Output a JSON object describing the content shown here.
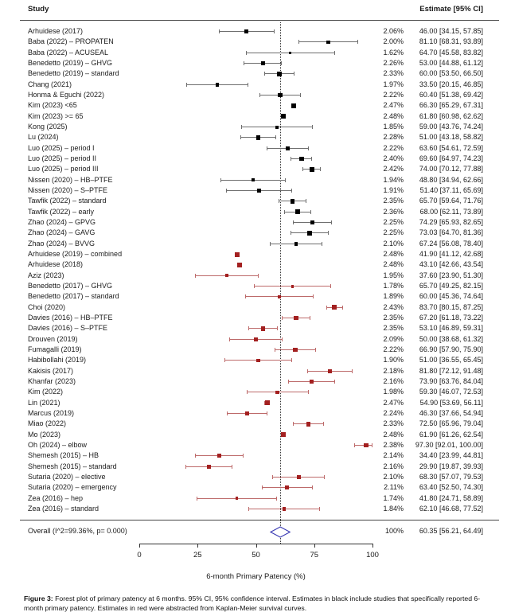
{
  "chart_data": {
    "type": "forest",
    "header": {
      "study_col": "Study",
      "estimate_col": "Estimate [95% CI]"
    },
    "xlabel": "6-month Primary Patency (%)",
    "xlim": [
      0,
      100
    ],
    "xticks": [
      0,
      25,
      50,
      75,
      100
    ],
    "reference_line_x": 60.35,
    "legend_note": "black = studies reporting 6-month primary patency; red = abstracted from Kaplan-Meier curves",
    "colors": {
      "black_marker": "#000000",
      "black_line": "#6e6e6e",
      "red_marker": "#a32020",
      "red_line": "#bd6a6a",
      "diamond_stroke": "#3c3cb4",
      "diamond_fill": "#ffffff",
      "reference_line": "#333333"
    },
    "studies": [
      {
        "name": "Arhuidese (2017)",
        "weight_pct": "2.06%",
        "estimate_label": "46.00 [34.15, 57.85]",
        "mean": 46.0,
        "ci_low": 34.15,
        "ci_high": 57.85,
        "color_group": "black"
      },
      {
        "name": "Baba (2022) – PROPATEN",
        "weight_pct": "2.00%",
        "estimate_label": "81.10 [68.31, 93.89]",
        "mean": 81.1,
        "ci_low": 68.31,
        "ci_high": 93.89,
        "color_group": "black"
      },
      {
        "name": "Baba (2022) – ACUSEAL",
        "weight_pct": "1.62%",
        "estimate_label": "64.70 [45.58, 83.82]",
        "mean": 64.7,
        "ci_low": 45.58,
        "ci_high": 83.82,
        "color_group": "black"
      },
      {
        "name": "Benedetto (2019) – GHVG",
        "weight_pct": "2.26%",
        "estimate_label": "53.00 [44.88, 61.12]",
        "mean": 53.0,
        "ci_low": 44.88,
        "ci_high": 61.12,
        "color_group": "black"
      },
      {
        "name": "Benedetto (2019) – standard",
        "weight_pct": "2.33%",
        "estimate_label": "60.00 [53.50, 66.50]",
        "mean": 60.0,
        "ci_low": 53.5,
        "ci_high": 66.5,
        "color_group": "black"
      },
      {
        "name": "Chang (2021)",
        "weight_pct": "1.97%",
        "estimate_label": "33.50 [20.15, 46.85]",
        "mean": 33.5,
        "ci_low": 20.15,
        "ci_high": 46.85,
        "color_group": "black"
      },
      {
        "name": "Honma & Eguchi (2022)",
        "weight_pct": "2.22%",
        "estimate_label": "60.40 [51.38, 69.42]",
        "mean": 60.4,
        "ci_low": 51.38,
        "ci_high": 69.42,
        "color_group": "black"
      },
      {
        "name": "Kim (2023)  <65",
        "weight_pct": "2.47%",
        "estimate_label": "66.30 [65.29, 67.31]",
        "mean": 66.3,
        "ci_low": 65.29,
        "ci_high": 67.31,
        "color_group": "black"
      },
      {
        "name": "Kim (2023) >= 65",
        "weight_pct": "2.48%",
        "estimate_label": "61.80 [60.98, 62.62]",
        "mean": 61.8,
        "ci_low": 60.98,
        "ci_high": 62.62,
        "color_group": "black"
      },
      {
        "name": "Kong (2025)",
        "weight_pct": "1.85%",
        "estimate_label": "59.00 [43.76, 74.24]",
        "mean": 59.0,
        "ci_low": 43.76,
        "ci_high": 74.24,
        "color_group": "black"
      },
      {
        "name": "Lu (2024)",
        "weight_pct": "2.28%",
        "estimate_label": "51.00 [43.18, 58.82]",
        "mean": 51.0,
        "ci_low": 43.18,
        "ci_high": 58.82,
        "color_group": "black"
      },
      {
        "name": "Luo (2025) – period I",
        "weight_pct": "2.22%",
        "estimate_label": "63.60 [54.61, 72.59]",
        "mean": 63.6,
        "ci_low": 54.61,
        "ci_high": 72.59,
        "color_group": "black"
      },
      {
        "name": "Luo (2025) – period II",
        "weight_pct": "2.40%",
        "estimate_label": "69.60 [64.97, 74.23]",
        "mean": 69.6,
        "ci_low": 64.97,
        "ci_high": 74.23,
        "color_group": "black"
      },
      {
        "name": "Luo (2025) – period III",
        "weight_pct": "2.42%",
        "estimate_label": "74.00 [70.12, 77.88]",
        "mean": 74.0,
        "ci_low": 70.12,
        "ci_high": 77.88,
        "color_group": "black"
      },
      {
        "name": "Nissen (2020) – HB–PTFE",
        "weight_pct": "1.94%",
        "estimate_label": "48.80 [34.94, 62.66]",
        "mean": 48.8,
        "ci_low": 34.94,
        "ci_high": 62.66,
        "color_group": "black"
      },
      {
        "name": "Nissen (2020) – S–PTFE",
        "weight_pct": "1.91%",
        "estimate_label": "51.40 [37.11, 65.69]",
        "mean": 51.4,
        "ci_low": 37.11,
        "ci_high": 65.69,
        "color_group": "black"
      },
      {
        "name": "Tawfik (2022) – standard",
        "weight_pct": "2.35%",
        "estimate_label": "65.70 [59.64, 71.76]",
        "mean": 65.7,
        "ci_low": 59.64,
        "ci_high": 71.76,
        "color_group": "black"
      },
      {
        "name": "Tawfik (2022) – early",
        "weight_pct": "2.36%",
        "estimate_label": "68.00 [62.11, 73.89]",
        "mean": 68.0,
        "ci_low": 62.11,
        "ci_high": 73.89,
        "color_group": "black"
      },
      {
        "name": "Zhao (2024) – GPVG",
        "weight_pct": "2.25%",
        "estimate_label": "74.29 [65.93, 82.65]",
        "mean": 74.29,
        "ci_low": 65.93,
        "ci_high": 82.65,
        "color_group": "black"
      },
      {
        "name": "Zhao (2024) – GAVG",
        "weight_pct": "2.25%",
        "estimate_label": "73.03 [64.70, 81.36]",
        "mean": 73.03,
        "ci_low": 64.7,
        "ci_high": 81.36,
        "color_group": "black"
      },
      {
        "name": "Zhao (2024) – BVVG",
        "weight_pct": "2.10%",
        "estimate_label": "67.24 [56.08, 78.40]",
        "mean": 67.24,
        "ci_low": 56.08,
        "ci_high": 78.4,
        "color_group": "black"
      },
      {
        "name": "Arhuidese (2019) – combined",
        "weight_pct": "2.48%",
        "estimate_label": "41.90 [41.12, 42.68]",
        "mean": 41.9,
        "ci_low": 41.12,
        "ci_high": 42.68,
        "color_group": "red"
      },
      {
        "name": "Arhuidese (2018)",
        "weight_pct": "2.48%",
        "estimate_label": "43.10 [42.66, 43.54]",
        "mean": 43.1,
        "ci_low": 42.66,
        "ci_high": 43.54,
        "color_group": "red"
      },
      {
        "name": "Aziz (2023)",
        "weight_pct": "1.95%",
        "estimate_label": "37.60 [23.90, 51.30]",
        "mean": 37.6,
        "ci_low": 23.9,
        "ci_high": 51.3,
        "color_group": "red"
      },
      {
        "name": "Benedetto (2017) – GHVG",
        "weight_pct": "1.78%",
        "estimate_label": "65.70 [49.25, 82.15]",
        "mean": 65.7,
        "ci_low": 49.25,
        "ci_high": 82.15,
        "color_group": "red"
      },
      {
        "name": "Benedetto (2017) – standard",
        "weight_pct": "1.89%",
        "estimate_label": "60.00 [45.36, 74.64]",
        "mean": 60.0,
        "ci_low": 45.36,
        "ci_high": 74.64,
        "color_group": "red"
      },
      {
        "name": "Choi (2020)",
        "weight_pct": "2.43%",
        "estimate_label": "83.70 [80.15, 87.25]",
        "mean": 83.7,
        "ci_low": 80.15,
        "ci_high": 87.25,
        "color_group": "red"
      },
      {
        "name": "Davies (2016) – HB–PTFE",
        "weight_pct": "2.35%",
        "estimate_label": "67.20 [61.18, 73.22]",
        "mean": 67.2,
        "ci_low": 61.18,
        "ci_high": 73.22,
        "color_group": "red"
      },
      {
        "name": "Davies (2016) – S–PTFE",
        "weight_pct": "2.35%",
        "estimate_label": "53.10 [46.89, 59.31]",
        "mean": 53.1,
        "ci_low": 46.89,
        "ci_high": 59.31,
        "color_group": "red"
      },
      {
        "name": "Drouven (2019)",
        "weight_pct": "2.09%",
        "estimate_label": "50.00 [38.68, 61.32]",
        "mean": 50.0,
        "ci_low": 38.68,
        "ci_high": 61.32,
        "color_group": "red"
      },
      {
        "name": "Fumagalli (2019)",
        "weight_pct": "2.22%",
        "estimate_label": "66.90 [57.90, 75.90]",
        "mean": 66.9,
        "ci_low": 57.9,
        "ci_high": 75.9,
        "color_group": "red"
      },
      {
        "name": "Habibollahi (2019)",
        "weight_pct": "1.90%",
        "estimate_label": "51.00 [36.55, 65.45]",
        "mean": 51.0,
        "ci_low": 36.55,
        "ci_high": 65.45,
        "color_group": "red"
      },
      {
        "name": "Kakisis (2017)",
        "weight_pct": "2.18%",
        "estimate_label": "81.80 [72.12, 91.48]",
        "mean": 81.8,
        "ci_low": 72.12,
        "ci_high": 91.48,
        "color_group": "red"
      },
      {
        "name": "Khanfar (2023)",
        "weight_pct": "2.16%",
        "estimate_label": "73.90 [63.76, 84.04]",
        "mean": 73.9,
        "ci_low": 63.76,
        "ci_high": 84.04,
        "color_group": "red"
      },
      {
        "name": "Kim (2022)",
        "weight_pct": "1.98%",
        "estimate_label": "59.30 [46.07, 72.53]",
        "mean": 59.3,
        "ci_low": 46.07,
        "ci_high": 72.53,
        "color_group": "red"
      },
      {
        "name": "Lin (2021)",
        "weight_pct": "2.47%",
        "estimate_label": "54.90 [53.69, 56.11]",
        "mean": 54.9,
        "ci_low": 53.69,
        "ci_high": 56.11,
        "color_group": "red"
      },
      {
        "name": "Marcus (2019)",
        "weight_pct": "2.24%",
        "estimate_label": "46.30 [37.66, 54.94]",
        "mean": 46.3,
        "ci_low": 37.66,
        "ci_high": 54.94,
        "color_group": "red"
      },
      {
        "name": "Miao (2022)",
        "weight_pct": "2.33%",
        "estimate_label": "72.50 [65.96, 79.04]",
        "mean": 72.5,
        "ci_low": 65.96,
        "ci_high": 79.04,
        "color_group": "red"
      },
      {
        "name": "Mo (2023)",
        "weight_pct": "2.48%",
        "estimate_label": "61.90 [61.26, 62.54]",
        "mean": 61.9,
        "ci_low": 61.26,
        "ci_high": 62.54,
        "color_group": "red"
      },
      {
        "name": "Oh (2024) – elbow",
        "weight_pct": "2.38%",
        "estimate_label": "97.30 [92.01, 100.00]",
        "mean": 97.3,
        "ci_low": 92.01,
        "ci_high": 100.0,
        "color_group": "red"
      },
      {
        "name": "Shemesh (2015) – HB",
        "weight_pct": "2.14%",
        "estimate_label": "34.40 [23.99, 44.81]",
        "mean": 34.4,
        "ci_low": 23.99,
        "ci_high": 44.81,
        "color_group": "red"
      },
      {
        "name": "Shemesh (2015) – standard",
        "weight_pct": "2.16%",
        "estimate_label": "29.90 [19.87, 39.93]",
        "mean": 29.9,
        "ci_low": 19.87,
        "ci_high": 39.93,
        "color_group": "red"
      },
      {
        "name": "Sutaria (2020) – elective",
        "weight_pct": "2.10%",
        "estimate_label": "68.30 [57.07, 79.53]",
        "mean": 68.3,
        "ci_low": 57.07,
        "ci_high": 79.53,
        "color_group": "red"
      },
      {
        "name": "Sutaria (2020) – emergency",
        "weight_pct": "2.11%",
        "estimate_label": "63.40 [52.50, 74.30]",
        "mean": 63.4,
        "ci_low": 52.5,
        "ci_high": 74.3,
        "color_group": "red"
      },
      {
        "name": "Zea (2016) – hep",
        "weight_pct": "1.74%",
        "estimate_label": "41.80 [24.71, 58.89]",
        "mean": 41.8,
        "ci_low": 24.71,
        "ci_high": 58.89,
        "color_group": "red"
      },
      {
        "name": "Zea (2016) – standard",
        "weight_pct": "1.84%",
        "estimate_label": "62.10 [46.68, 77.52]",
        "mean": 62.1,
        "ci_low": 46.68,
        "ci_high": 77.52,
        "color_group": "red"
      }
    ],
    "overall": {
      "label": "Overall (I^2=99.36%, p= 0.000)",
      "weight_pct": "100%",
      "estimate_label": "60.35 [56.21, 64.49]",
      "mean": 60.35,
      "ci_low": 56.21,
      "ci_high": 64.49
    }
  },
  "caption": {
    "label": "Figure 3:",
    "text": " Forest plot of primary patency at 6 months. 95% CI, 95% confidence interval. Estimates in black include studies that specifically reported 6-month primary patency. Estimates in red were abstracted from Kaplan-Meier survival curves."
  }
}
